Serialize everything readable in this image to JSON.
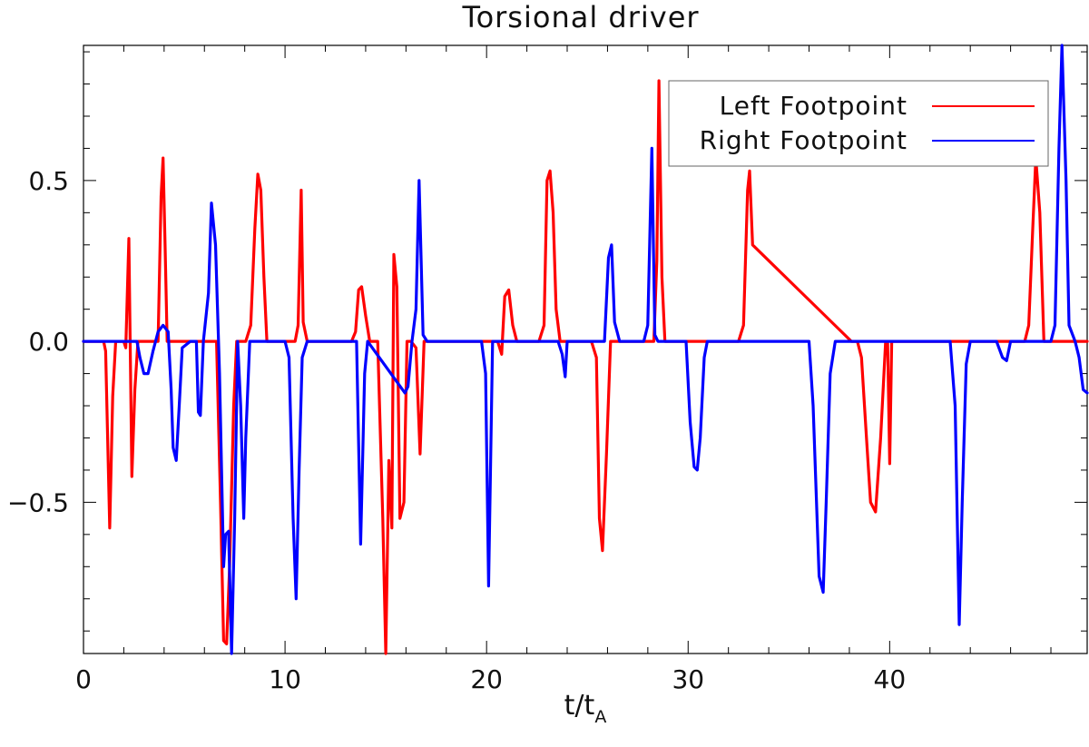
{
  "chart_data": {
    "type": "line",
    "title": "Torsional driver",
    "xlabel": "t/t",
    "xlabel_sub": "A",
    "ylabel": "",
    "xlim": [
      0,
      49.8
    ],
    "ylim": [
      -0.97,
      0.92
    ],
    "xticks": [
      0,
      10,
      20,
      30,
      40
    ],
    "xtick_labels": [
      "0",
      "10",
      "20",
      "30",
      "40"
    ],
    "yticks": [
      -0.5,
      0.0,
      0.5
    ],
    "ytick_labels": [
      "−0.5",
      "0.0",
      "0.5"
    ],
    "legend_position": "top-right",
    "grid": false,
    "series": [
      {
        "name": "Left Footpoint",
        "color": "#ff0000",
        "x": [
          0,
          1.0,
          1.1,
          1.3,
          1.45,
          1.6,
          2.0,
          2.1,
          2.25,
          2.4,
          2.55,
          2.7,
          2.85,
          3.3,
          3.7,
          3.85,
          3.95,
          4.05,
          4.15,
          4.35,
          6.6,
          6.8,
          6.95,
          7.1,
          7.25,
          7.45,
          7.6,
          7.8,
          8.05,
          8.3,
          8.5,
          8.65,
          8.8,
          8.95,
          9.1,
          10.5,
          10.65,
          10.8,
          10.9,
          11.1,
          13.0,
          13.3,
          13.5,
          13.65,
          13.8,
          14.0,
          14.2,
          14.6,
          14.85,
          15.0,
          15.15,
          15.3,
          15.4,
          15.55,
          15.7,
          15.9,
          16.05,
          16.25,
          16.5,
          16.7,
          16.9,
          20.3,
          20.55,
          20.75,
          20.9,
          21.1,
          21.3,
          21.5,
          22.6,
          22.85,
          23.0,
          23.15,
          23.3,
          23.45,
          23.65,
          25.2,
          25.45,
          25.6,
          25.75,
          25.95,
          26.15,
          28.1,
          28.3,
          28.45,
          28.55,
          28.7,
          28.85,
          32.5,
          32.75,
          32.95,
          33.05,
          33.2,
          38.1,
          38.4,
          38.6,
          38.85,
          39.05,
          39.3,
          39.55,
          39.8,
          39.9,
          40.0,
          40.1,
          40.2,
          46.7,
          46.9,
          47.1,
          47.25,
          47.45,
          47.65,
          49.8
        ],
        "values": [
          0.0,
          0.0,
          -0.03,
          -0.58,
          -0.17,
          0.0,
          0.0,
          -0.02,
          0.32,
          -0.42,
          -0.15,
          0.0,
          0.0,
          0.0,
          0.0,
          0.45,
          0.57,
          0.3,
          0.0,
          0.0,
          0.0,
          -0.5,
          -0.93,
          -0.94,
          -0.7,
          -0.2,
          0.0,
          0.0,
          0.0,
          0.05,
          0.35,
          0.52,
          0.47,
          0.2,
          0.0,
          0.0,
          0.05,
          0.47,
          0.06,
          0.0,
          0.0,
          0.0,
          0.03,
          0.16,
          0.17,
          0.08,
          0.0,
          0.0,
          -0.55,
          -0.97,
          -0.37,
          -0.58,
          0.27,
          0.17,
          -0.55,
          -0.5,
          0.0,
          0.0,
          -0.02,
          -0.35,
          0.0,
          0.0,
          0.0,
          -0.04,
          0.14,
          0.16,
          0.05,
          0.0,
          0.0,
          0.05,
          0.5,
          0.53,
          0.4,
          0.1,
          0.0,
          0.0,
          -0.05,
          -0.55,
          -0.65,
          -0.35,
          0.0,
          0.0,
          0.0,
          0.25,
          0.81,
          0.2,
          0.0,
          0.0,
          0.05,
          0.47,
          0.53,
          0.3,
          0.0,
          0.0,
          -0.05,
          -0.3,
          -0.5,
          -0.53,
          -0.3,
          0.0,
          0.0,
          -0.38,
          0.0,
          0.0,
          0.0,
          0.05,
          0.35,
          0.57,
          0.4,
          0.0,
          0.0
        ]
      },
      {
        "name": "Right Footpoint",
        "color": "#0000ff",
        "x": [
          0,
          2.65,
          2.8,
          3.0,
          3.2,
          3.45,
          3.7,
          3.95,
          4.2,
          4.35,
          4.45,
          4.6,
          4.75,
          4.9,
          5.3,
          5.6,
          5.7,
          5.8,
          5.95,
          6.2,
          6.35,
          6.55,
          6.75,
          6.95,
          7.05,
          7.2,
          7.35,
          7.5,
          7.65,
          7.8,
          7.95,
          8.05,
          8.25,
          10.0,
          10.2,
          10.4,
          10.55,
          10.7,
          10.85,
          11.1,
          13.55,
          13.75,
          13.95,
          14.1,
          15.95,
          16.1,
          16.3,
          16.5,
          16.65,
          16.85,
          17.05,
          19.75,
          19.95,
          20.1,
          20.3,
          23.55,
          23.75,
          23.9,
          24.0,
          25.85,
          26.05,
          26.2,
          26.35,
          26.6,
          27.8,
          28.0,
          28.2,
          28.35,
          28.5,
          28.65,
          29.9,
          30.1,
          30.3,
          30.45,
          30.6,
          30.8,
          30.95,
          36.0,
          36.2,
          36.5,
          36.7,
          36.85,
          37.05,
          37.3,
          43.0,
          43.25,
          43.45,
          43.6,
          43.8,
          44.0,
          44.2,
          45.3,
          45.6,
          45.8,
          46.0,
          48.0,
          48.2,
          48.4,
          48.55,
          48.75,
          48.9,
          49.2,
          49.4,
          49.6,
          49.8
        ],
        "values": [
          0.0,
          0.0,
          -0.05,
          -0.1,
          -0.1,
          -0.03,
          0.03,
          0.05,
          0.03,
          -0.15,
          -0.33,
          -0.37,
          -0.2,
          -0.02,
          0.0,
          0.0,
          -0.22,
          -0.23,
          0.0,
          0.15,
          0.43,
          0.3,
          -0.1,
          -0.7,
          -0.6,
          -0.59,
          -0.97,
          -0.55,
          0.0,
          -0.2,
          -0.55,
          -0.3,
          0.0,
          0.0,
          -0.05,
          -0.55,
          -0.8,
          -0.4,
          -0.05,
          0.0,
          0.0,
          -0.63,
          -0.1,
          0.0,
          -0.16,
          -0.14,
          0.0,
          0.1,
          0.5,
          0.02,
          0.0,
          0.0,
          -0.1,
          -0.76,
          0.0,
          0.0,
          -0.04,
          -0.11,
          0.0,
          0.0,
          0.26,
          0.3,
          0.06,
          0.0,
          0.0,
          0.05,
          0.6,
          0.02,
          0.0,
          0.0,
          0.0,
          -0.25,
          -0.39,
          -0.4,
          -0.3,
          -0.05,
          0.0,
          0.0,
          -0.2,
          -0.73,
          -0.78,
          -0.5,
          -0.1,
          0.0,
          0.0,
          -0.2,
          -0.88,
          -0.5,
          -0.07,
          0.0,
          0.0,
          0.0,
          -0.05,
          -0.06,
          0.0,
          0.0,
          0.05,
          0.6,
          0.92,
          0.5,
          0.05,
          0.0,
          -0.05,
          -0.15,
          -0.16
        ]
      }
    ]
  }
}
